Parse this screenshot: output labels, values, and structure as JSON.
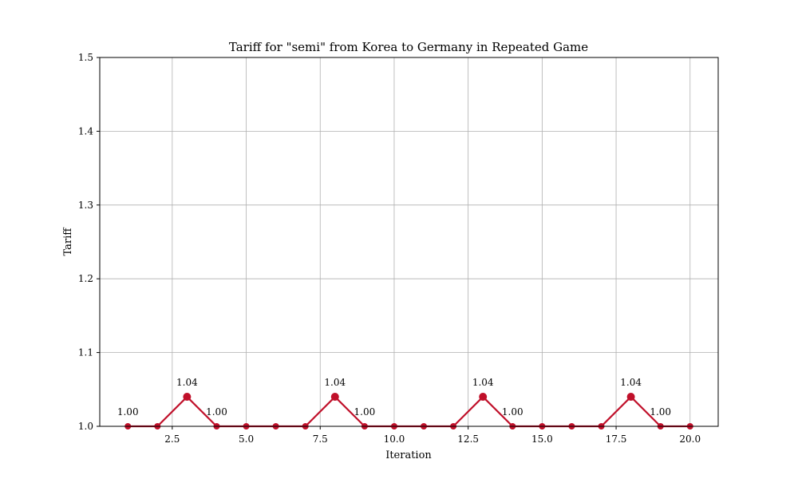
{
  "chart_data": {
    "type": "line",
    "title": "Tariff for \"semi\" from Korea to Germany in Repeated Game",
    "xlabel": "Iteration",
    "ylabel": "Tariff",
    "xlim": [
      0.05,
      20.95
    ],
    "ylim": [
      1.0,
      1.5
    ],
    "xticks": [
      2.5,
      5.0,
      7.5,
      10.0,
      12.5,
      15.0,
      17.5,
      20.0
    ],
    "xtick_labels": [
      "2.5",
      "5.0",
      "7.5",
      "10.0",
      "12.5",
      "15.0",
      "17.5",
      "20.0"
    ],
    "yticks": [
      1.0,
      1.1,
      1.2,
      1.3,
      1.4,
      1.5
    ],
    "ytick_labels": [
      "1.0",
      "1.1",
      "1.2",
      "1.3",
      "1.4",
      "1.5"
    ],
    "grid": true,
    "series": [
      {
        "color": "#c0102a",
        "x": [
          1,
          2,
          3,
          4,
          5,
          6,
          7,
          8,
          9,
          10,
          11,
          12,
          13,
          14,
          15,
          16,
          17,
          18,
          19,
          20
        ],
        "values": [
          1.0,
          1.0,
          1.04,
          1.0,
          1.0,
          1.0,
          1.0,
          1.04,
          1.0,
          1.0,
          1.0,
          1.0,
          1.04,
          1.0,
          1.0,
          1.0,
          1.0,
          1.04,
          1.0,
          1.0
        ]
      }
    ],
    "annotations": [
      {
        "x": 1,
        "y": 1.0,
        "text": "1.00"
      },
      {
        "x": 3,
        "y": 1.04,
        "text": "1.04"
      },
      {
        "x": 4,
        "y": 1.0,
        "text": "1.00"
      },
      {
        "x": 8,
        "y": 1.04,
        "text": "1.04"
      },
      {
        "x": 9,
        "y": 1.0,
        "text": "1.00"
      },
      {
        "x": 13,
        "y": 1.04,
        "text": "1.04"
      },
      {
        "x": 14,
        "y": 1.0,
        "text": "1.00"
      },
      {
        "x": 18,
        "y": 1.04,
        "text": "1.04"
      },
      {
        "x": 19,
        "y": 1.0,
        "text": "1.00"
      }
    ]
  }
}
